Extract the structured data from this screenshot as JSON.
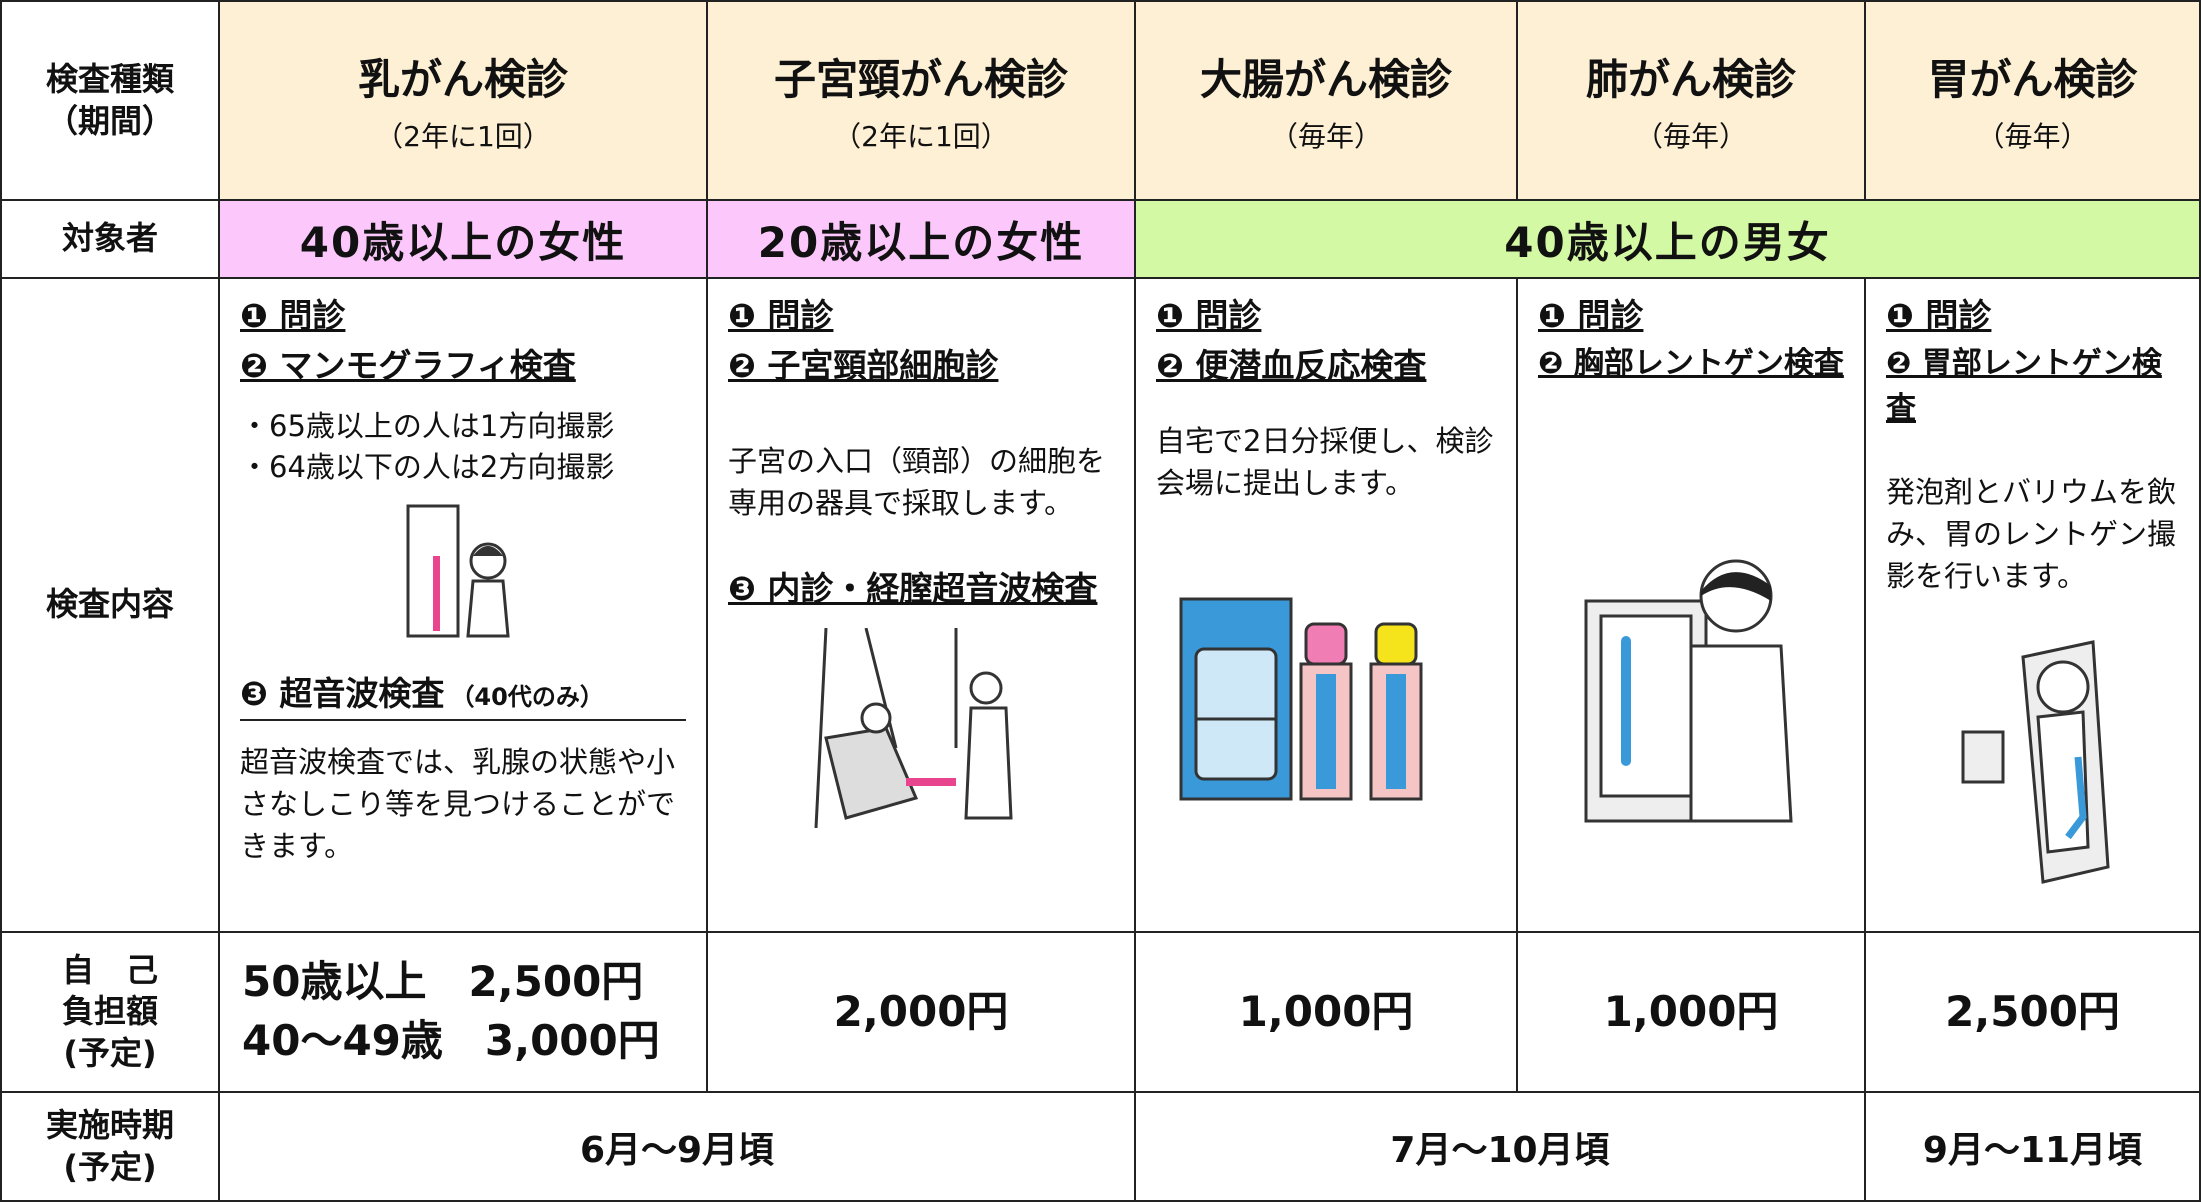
{
  "header": {
    "row_label": [
      "検査種類",
      "（期間）"
    ],
    "columns": [
      {
        "name": "乳がん検診",
        "period": "（2年に1回）"
      },
      {
        "name": "子宮頸がん検診",
        "period": "（2年に1回）"
      },
      {
        "name": "大腸がん検診",
        "period": "（毎年）"
      },
      {
        "name": "肺がん検診",
        "period": "（毎年）"
      },
      {
        "name": "胃がん検診",
        "period": "（毎年）"
      }
    ]
  },
  "target": {
    "label": "対象者",
    "groups": [
      "40歳以上の女性",
      "20歳以上の女性",
      "40歳以上の男女"
    ]
  },
  "content": {
    "label": "検査内容",
    "columns": [
      {
        "items": [
          "❶ 問診",
          "❷ マンモグラフィ検査"
        ],
        "notes": [
          "・65歳以上の人は1方向撮影",
          "・64歳以下の人は2方向撮影"
        ],
        "item3": "❸ 超音波検査",
        "item3_note": "（40代のみ）",
        "text": "超音波検査では、乳腺の状態や小さなしこり等を見つけることができます。"
      },
      {
        "items": [
          "❶ 問診",
          "❷ 子宮頸部細胞診"
        ],
        "text": "子宮の入口（頸部）の細胞を専用の器具で採取します。",
        "item3": "❸ 内診・経膣超音波検査"
      },
      {
        "items": [
          "❶ 問診",
          "❷ 便潜血反応検査"
        ],
        "text": "自宅で2日分採便し、検診会場に提出します。"
      },
      {
        "items": [
          "❶ 問診",
          "❷ 胸部レントゲン検査"
        ]
      },
      {
        "items": [
          "❶ 問診",
          "❷ 胃部レントゲン検査"
        ],
        "text": "発泡剤とバリウムを飲み、胃のレントゲン撮影を行います。"
      }
    ]
  },
  "cost": {
    "label": [
      "自　己",
      "負担額",
      "(予定)"
    ],
    "values": [
      [
        "50歳以上　2,500円",
        "40〜49歳　3,000円"
      ],
      "2,000円",
      "1,000円",
      "1,000円",
      "2,500円"
    ]
  },
  "schedule": {
    "label": [
      "実施時期",
      "(予定)"
    ],
    "values": [
      "6月〜9月頃",
      "7月〜10月頃",
      "9月〜11月頃"
    ]
  }
}
